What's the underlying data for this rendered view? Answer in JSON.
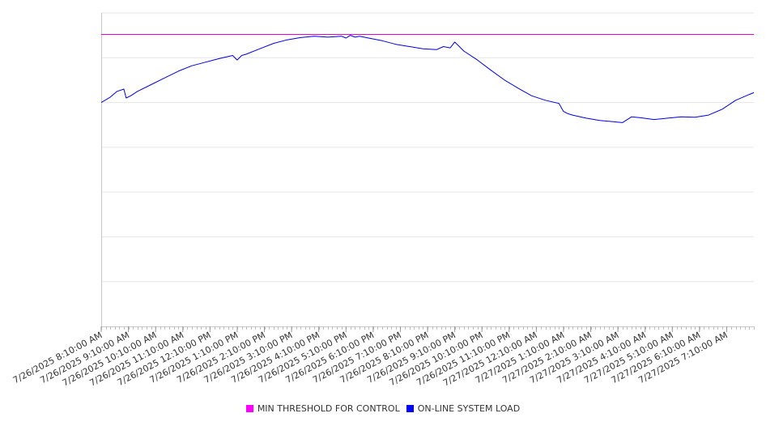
{
  "chart_data": {
    "type": "line",
    "title": "",
    "xlabel": "",
    "ylabel": "",
    "y_tick_labels_shown": false,
    "grid": true,
    "legend_position": "bottom",
    "ylim": [
      0,
      7
    ],
    "x_range": [
      "7/26/2025 8:10:00 AM",
      "7/27/2025 8:10:00 AM"
    ],
    "x_tick_labels": [
      "7/26/2025 8:10:00 AM",
      "7/26/2025 9:10:00 AM",
      "7/26/2025 10:10:00 AM",
      "7/26/2025 11:10:00 AM",
      "7/26/2025 12:10:00 PM",
      "7/26/2025 1:10:00 PM",
      "7/26/2025 2:10:00 PM",
      "7/26/2025 3:10:00 PM",
      "7/26/2025 4:10:00 PM",
      "7/26/2025 5:10:00 PM",
      "7/26/2025 6:10:00 PM",
      "7/26/2025 7:10:00 PM",
      "7/26/2025 8:10:00 PM",
      "7/26/2025 9:10:00 PM",
      "7/26/2025 10:10:00 PM",
      "7/26/2025 11:10:00 PM",
      "7/27/2025 12:10:00 AM",
      "7/27/2025 1:10:00 AM",
      "7/27/2025 2:10:00 AM",
      "7/27/2025 3:10:00 AM",
      "7/27/2025 4:10:00 AM",
      "7/27/2025 5:10:00 AM",
      "7/27/2025 6:10:00 AM",
      "7/27/2025 7:10:00 AM"
    ],
    "series": [
      {
        "name": "MIN THRESHOLD FOR CONTROL",
        "color": "#e000e0",
        "x": [
          "7/26/2025 8:10:00 AM",
          "7/27/2025 8:10:00 AM"
        ],
        "values": [
          6.52,
          6.52
        ]
      },
      {
        "name": "ON-LINE SYSTEM LOAD",
        "color": "#0000e0",
        "x": [
          "7/26/2025 8:10:00 AM",
          "7/26/2025 8:30:00 AM",
          "7/26/2025 8:45:00 AM",
          "7/26/2025 9:00:00 AM",
          "7/26/2025 9:05:00 AM",
          "7/26/2025 9:15:00 AM",
          "7/26/2025 9:30:00 AM",
          "7/26/2025 10:00:00 AM",
          "7/26/2025 10:30:00 AM",
          "7/26/2025 11:00:00 AM",
          "7/26/2025 11:30:00 AM",
          "7/26/2025 12:00:00 PM",
          "7/26/2025 12:30:00 PM",
          "7/26/2025 1:00:00 PM",
          "7/26/2025 1:10:00 PM",
          "7/26/2025 1:20:00 PM",
          "7/26/2025 1:30:00 PM",
          "7/26/2025 2:00:00 PM",
          "7/26/2025 2:30:00 PM",
          "7/26/2025 3:00:00 PM",
          "7/26/2025 3:30:00 PM",
          "7/26/2025 4:00:00 PM",
          "7/26/2025 4:30:00 PM",
          "7/26/2025 5:00:00 PM",
          "7/26/2025 5:10:00 PM",
          "7/26/2025 5:20:00 PM",
          "7/26/2025 5:30:00 PM",
          "7/26/2025 5:40:00 PM",
          "7/26/2025 6:00:00 PM",
          "7/26/2025 6:30:00 PM",
          "7/26/2025 7:00:00 PM",
          "7/26/2025 7:30:00 PM",
          "7/26/2025 8:00:00 PM",
          "7/26/2025 8:30:00 PM",
          "7/26/2025 8:45:00 PM",
          "7/26/2025 9:00:00 PM",
          "7/26/2025 9:10:00 PM",
          "7/26/2025 9:30:00 PM",
          "7/26/2025 10:00:00 PM",
          "7/26/2025 10:30:00 PM",
          "7/26/2025 11:00:00 PM",
          "7/26/2025 11:30:00 PM",
          "7/27/2025 12:00:00 AM",
          "7/27/2025 12:30:00 AM",
          "7/27/2025 1:00:00 AM",
          "7/27/2025 1:10:00 AM",
          "7/27/2025 1:20:00 AM",
          "7/27/2025 1:30:00 AM",
          "7/27/2025 2:00:00 AM",
          "7/27/2025 2:30:00 AM",
          "7/27/2025 3:00:00 AM",
          "7/27/2025 3:20:00 AM",
          "7/27/2025 3:40:00 AM",
          "7/27/2025 4:00:00 AM",
          "7/27/2025 4:30:00 AM",
          "7/27/2025 5:00:00 AM",
          "7/27/2025 5:30:00 AM",
          "7/27/2025 6:00:00 AM",
          "7/27/2025 6:30:00 AM",
          "7/27/2025 7:00:00 AM",
          "7/27/2025 7:30:00 AM",
          "7/27/2025 8:00:00 AM",
          "7/27/2025 8:10:00 AM"
        ],
        "values": [
          5.0,
          5.12,
          5.25,
          5.3,
          5.1,
          5.15,
          5.25,
          5.4,
          5.55,
          5.7,
          5.82,
          5.9,
          5.98,
          6.05,
          5.95,
          6.05,
          6.08,
          6.2,
          6.32,
          6.4,
          6.45,
          6.48,
          6.46,
          6.48,
          6.44,
          6.5,
          6.46,
          6.48,
          6.44,
          6.38,
          6.3,
          6.25,
          6.2,
          6.18,
          6.25,
          6.22,
          6.35,
          6.15,
          5.95,
          5.72,
          5.5,
          5.32,
          5.15,
          5.05,
          4.98,
          4.8,
          4.75,
          4.72,
          4.65,
          4.6,
          4.57,
          4.55,
          4.68,
          4.66,
          4.62,
          4.65,
          4.68,
          4.67,
          4.72,
          4.85,
          5.05,
          5.18,
          5.22
        ]
      }
    ]
  }
}
